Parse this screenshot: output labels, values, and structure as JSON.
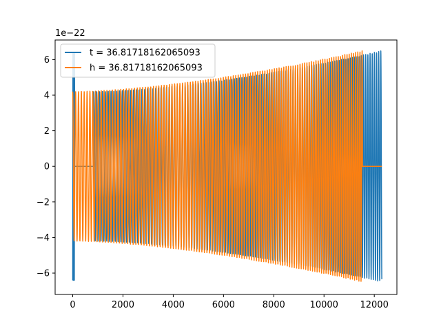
{
  "chart_data": {
    "type": "line",
    "title": "",
    "xlabel": "",
    "ylabel": "",
    "y_offset_label": "1e−22",
    "xlim": [
      -700,
      12900
    ],
    "ylim": [
      -7.2,
      7.1
    ],
    "x_ticks": [
      0,
      2000,
      4000,
      6000,
      8000,
      10000,
      12000
    ],
    "x_tick_labels": [
      "0",
      "2000",
      "4000",
      "6000",
      "8000",
      "10000",
      "12000"
    ],
    "y_ticks": [
      -6,
      -4,
      -2,
      0,
      2,
      4,
      6
    ],
    "y_tick_labels": [
      "−6",
      "−4",
      "−2",
      "0",
      "2",
      "4",
      "6"
    ],
    "grid": false,
    "legend_position": "upper-left",
    "series": [
      {
        "name": "t = 36.81718162065093",
        "color": "#1f77b4",
        "segments": [
          {
            "kind": "burst",
            "x_start": 0,
            "x_end": 80,
            "amplitude": 6.4,
            "cycles": 5
          },
          {
            "kind": "flat",
            "x_start": 80,
            "x_end": 840,
            "value": 0
          },
          {
            "kind": "chirp",
            "x_start": 840,
            "x_end": 12300,
            "amp_start": 4.2,
            "amp_end": 6.5,
            "period_start": 115,
            "period_end": 85
          }
        ]
      },
      {
        "name": "h = 36.81718162065093",
        "color": "#ff7f0e",
        "segments": [
          {
            "kind": "chirp",
            "x_start": 0,
            "x_end": 11530,
            "amp_start": 4.2,
            "amp_end": 6.5,
            "period_start": 115,
            "period_end": 85
          },
          {
            "kind": "flat",
            "x_start": 11530,
            "x_end": 12300,
            "value": 0
          }
        ]
      }
    ]
  }
}
